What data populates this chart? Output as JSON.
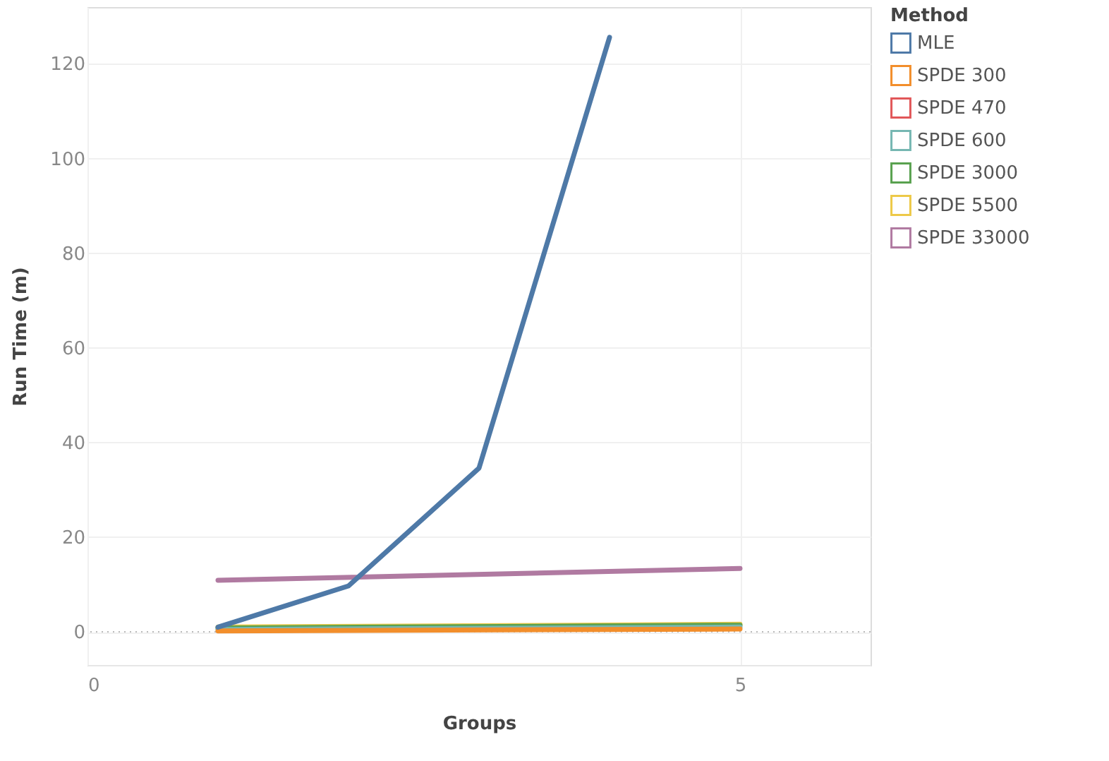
{
  "chart_data": {
    "type": "line",
    "xlabel": "Groups",
    "ylabel": "Run Time (m)",
    "legend_title": "Method",
    "xlim": [
      0,
      6
    ],
    "xticks": [
      0,
      5
    ],
    "ylim": [
      -7,
      132
    ],
    "yticks": [
      0,
      20,
      40,
      60,
      80,
      100,
      120
    ],
    "grid": true,
    "legend": "top right",
    "line_style": "solid",
    "marker": "none",
    "ref_lines": [
      {
        "axis": "y",
        "value": 0,
        "label": null,
        "line_style": "dotted",
        "color": "#bbbbbb"
      }
    ],
    "series": [
      {
        "name": "MLE",
        "color": "#4e79a7",
        "x": [
          1,
          2,
          3,
          4
        ],
        "values": [
          1,
          9.7,
          34.6,
          125.6
        ]
      },
      {
        "name": "SPDE 300",
        "color": "#f28e2b",
        "x": [
          1,
          5
        ],
        "values": [
          0.2,
          0.6
        ]
      },
      {
        "name": "SPDE 470",
        "color": "#e15759",
        "values": [
          null,
          null
        ]
      },
      {
        "name": "SPDE 600",
        "color": "#76b7b2",
        "x": [
          1,
          5
        ],
        "values": [
          0.5,
          1.0
        ]
      },
      {
        "name": "SPDE 3000",
        "color": "#59a14f",
        "x": [
          1,
          5
        ],
        "values": [
          0.8,
          1.4
        ]
      },
      {
        "name": "SPDE 5500",
        "color": "#edc948",
        "x": [
          1,
          5
        ],
        "values": [
          1.0,
          1.6
        ]
      },
      {
        "name": "SPDE 33000",
        "color": "#b07aa1",
        "x": [
          1,
          5
        ],
        "values": [
          10.9,
          13.4
        ]
      }
    ]
  }
}
